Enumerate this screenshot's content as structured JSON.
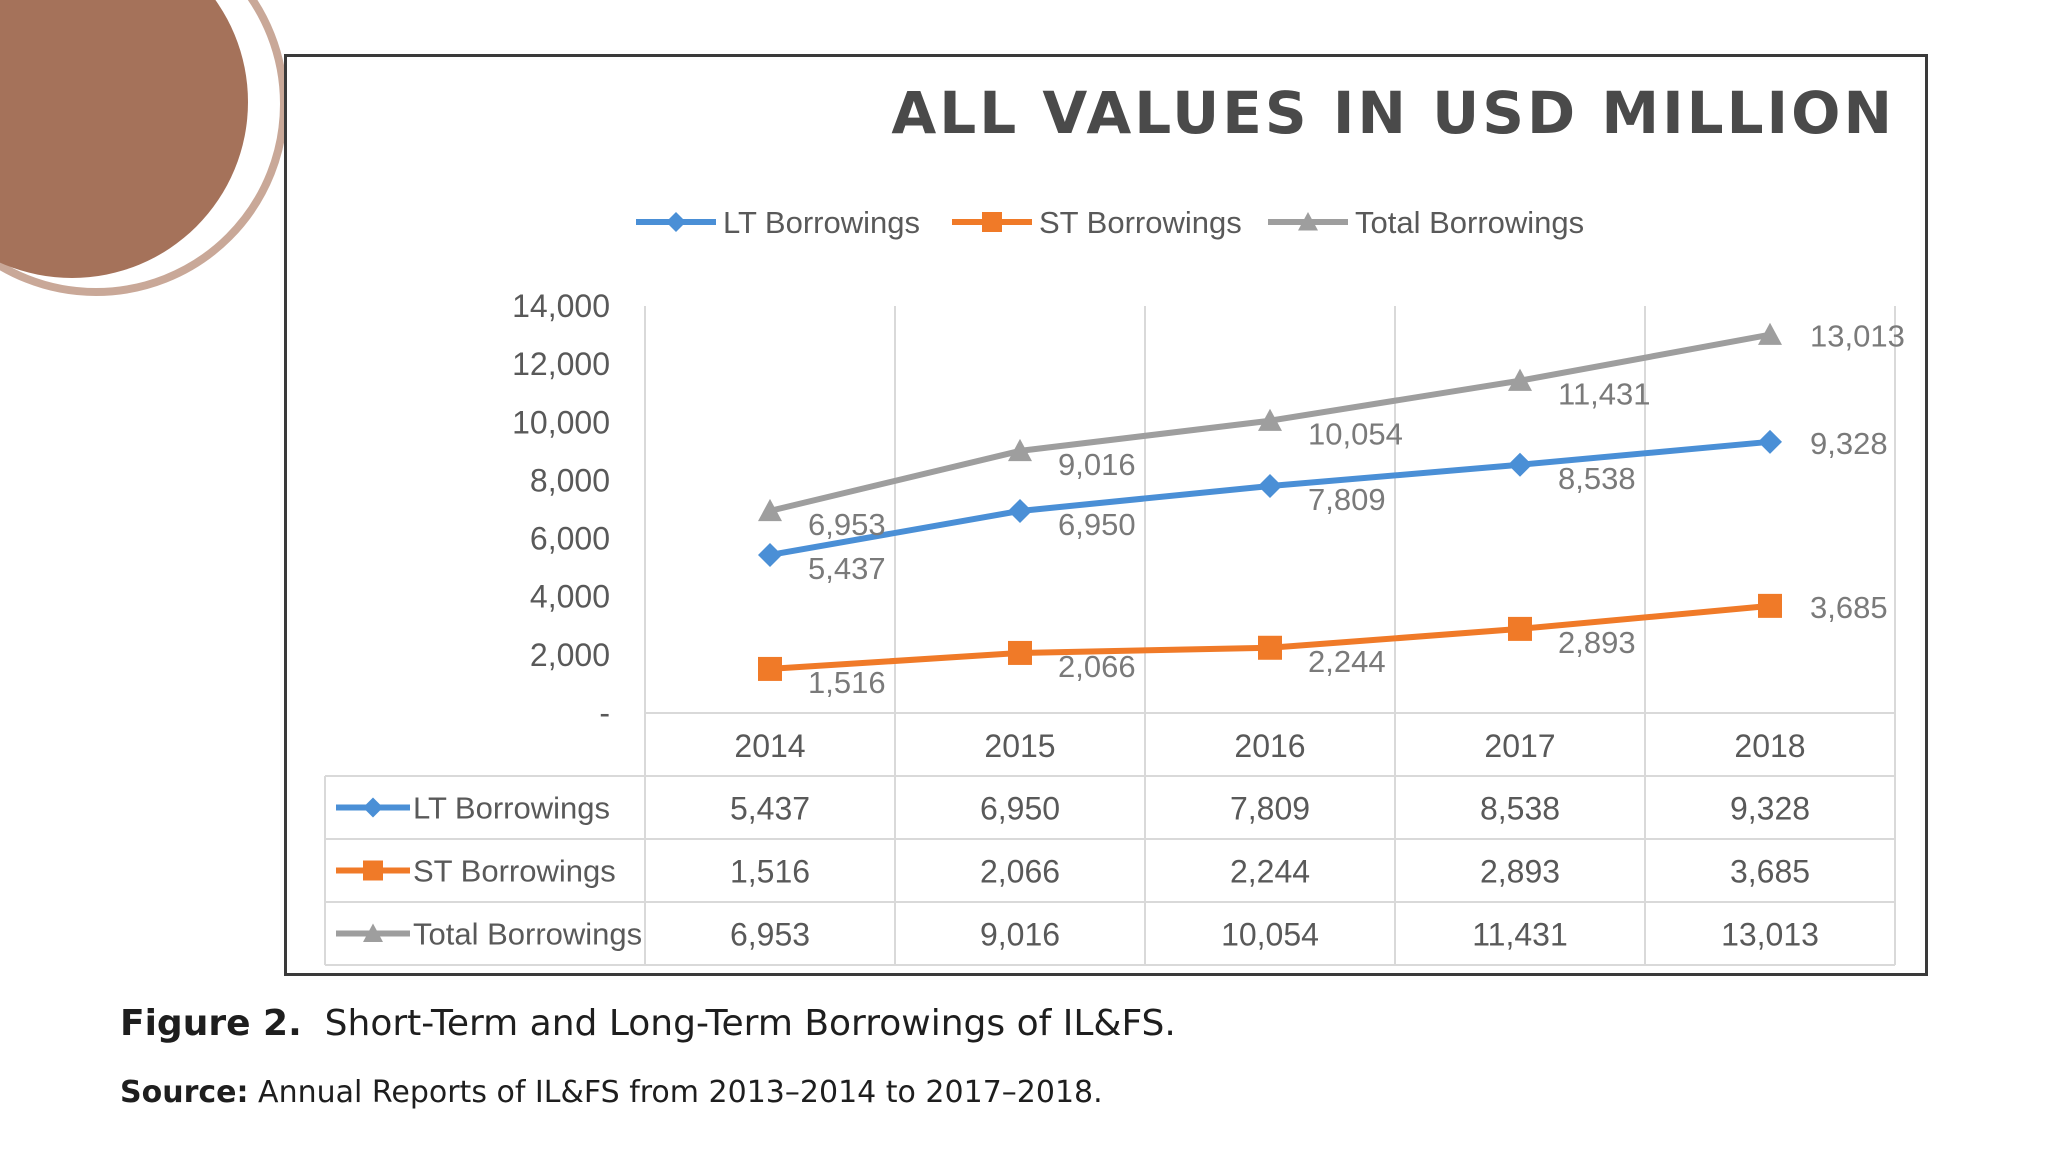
{
  "figure": {
    "label": "Figure 2.",
    "caption": "Short-Term and Long-Term Borrowings of IL&FS.",
    "source_label": "Source:",
    "source_text": "Annual Reports of IL&FS from 2013–2014 to 2017–2018."
  },
  "chart_data": {
    "type": "line",
    "title": "ALL VALUES IN USD MILLION",
    "categories": [
      "2014",
      "2015",
      "2016",
      "2017",
      "2018"
    ],
    "series": [
      {
        "name": "LT Borrowings",
        "color": "#4a8fd6",
        "marker": "diamond",
        "values": [
          5437,
          6950,
          7809,
          8538,
          9328
        ],
        "labels": [
          "5,437",
          "6,950",
          "7,809",
          "8,538",
          "9,328"
        ]
      },
      {
        "name": "ST Borrowings",
        "color": "#f07a28",
        "marker": "square",
        "values": [
          1516,
          2066,
          2244,
          2893,
          3685
        ],
        "labels": [
          "1,516",
          "2,066",
          "2,244",
          "2,893",
          "3,685"
        ]
      },
      {
        "name": "Total Borrowings",
        "color": "#9e9e9e",
        "marker": "triangle",
        "values": [
          6953,
          9016,
          10054,
          11431,
          13013
        ],
        "labels": [
          "6,953",
          "9,016",
          "10,054",
          "11,431",
          "13,013"
        ]
      }
    ],
    "ylim": [
      0,
      14000
    ],
    "yticks": [
      "-",
      "2,000",
      "4,000",
      "6,000",
      "8,000",
      "10,000",
      "12,000",
      "14,000"
    ],
    "legend_position": "top",
    "data_table": true,
    "grid": "vertical"
  },
  "decoration": {
    "circle_fill": "#a5725a",
    "ring_color": "#c9a898"
  }
}
